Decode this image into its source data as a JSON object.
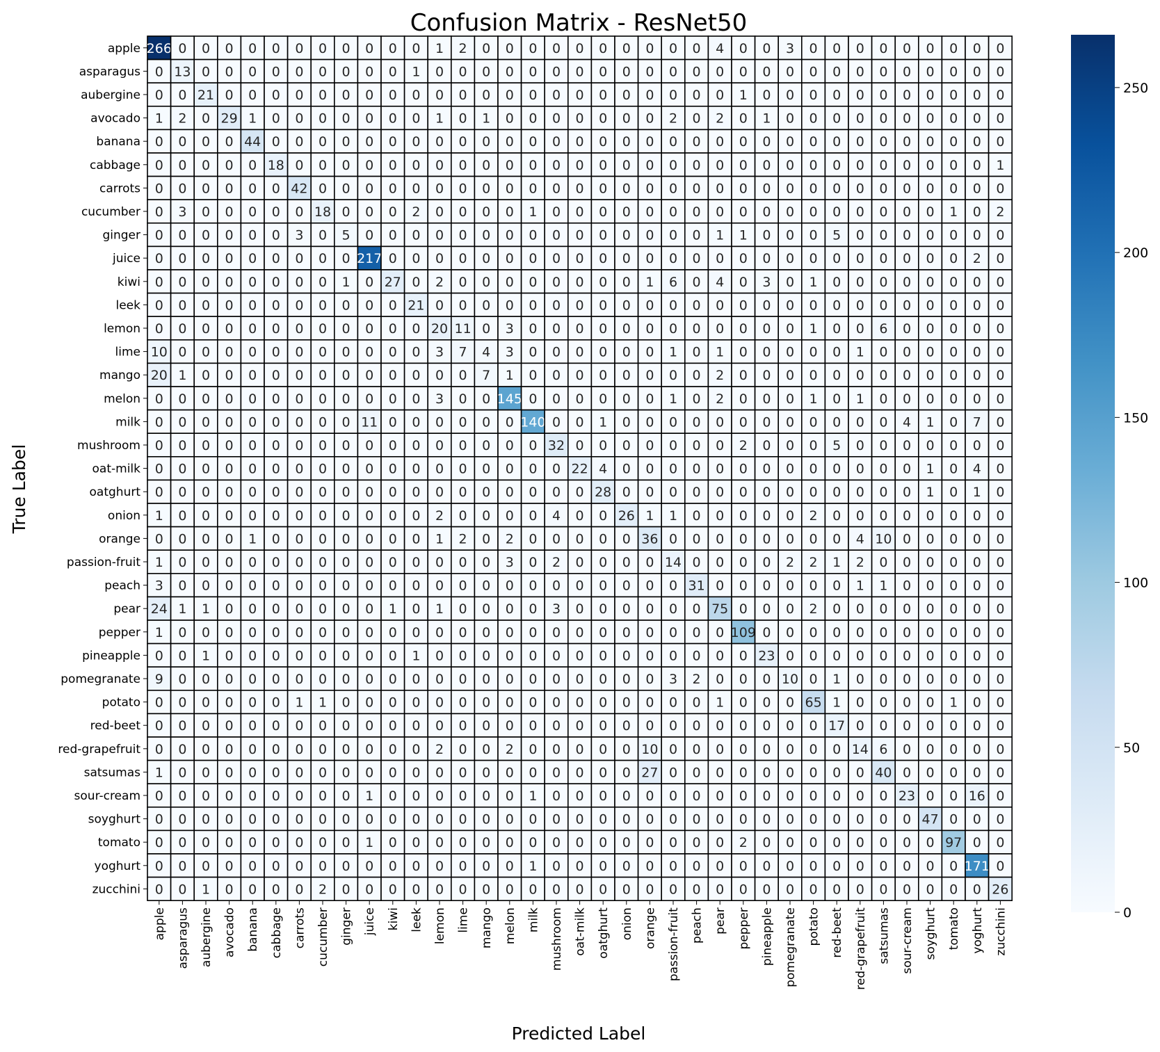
{
  "chart_data": {
    "type": "heatmap",
    "title": "Confusion Matrix - ResNet50",
    "xlabel": "Predicted Label",
    "ylabel": "True Label",
    "colormap": "Blues",
    "value_range": [
      0,
      266
    ],
    "colorbar_ticks": [
      0,
      50,
      100,
      150,
      200,
      250
    ],
    "labels": [
      "apple",
      "asparagus",
      "aubergine",
      "avocado",
      "banana",
      "cabbage",
      "carrots",
      "cucumber",
      "ginger",
      "juice",
      "kiwi",
      "leek",
      "lemon",
      "lime",
      "mango",
      "melon",
      "milk",
      "mushroom",
      "oat-milk",
      "oatghurt",
      "onion",
      "orange",
      "passion-fruit",
      "peach",
      "pear",
      "pepper",
      "pineapple",
      "pomegranate",
      "potato",
      "red-beet",
      "red-grapefruit",
      "satsumas",
      "sour-cream",
      "soyghurt",
      "tomato",
      "yoghurt",
      "zucchini"
    ],
    "matrix": [
      [
        266,
        0,
        0,
        0,
        0,
        0,
        0,
        0,
        0,
        0,
        0,
        0,
        1,
        2,
        0,
        0,
        0,
        0,
        0,
        0,
        0,
        0,
        0,
        0,
        4,
        0,
        0,
        3,
        0,
        0,
        0,
        0,
        0,
        0,
        0,
        0,
        0
      ],
      [
        0,
        13,
        0,
        0,
        0,
        0,
        0,
        0,
        0,
        0,
        0,
        1,
        0,
        0,
        0,
        0,
        0,
        0,
        0,
        0,
        0,
        0,
        0,
        0,
        0,
        0,
        0,
        0,
        0,
        0,
        0,
        0,
        0,
        0,
        0,
        0,
        0
      ],
      [
        0,
        0,
        21,
        0,
        0,
        0,
        0,
        0,
        0,
        0,
        0,
        0,
        0,
        0,
        0,
        0,
        0,
        0,
        0,
        0,
        0,
        0,
        0,
        0,
        0,
        1,
        0,
        0,
        0,
        0,
        0,
        0,
        0,
        0,
        0,
        0,
        0
      ],
      [
        1,
        2,
        0,
        29,
        1,
        0,
        0,
        0,
        0,
        0,
        0,
        0,
        1,
        0,
        1,
        0,
        0,
        0,
        0,
        0,
        0,
        0,
        2,
        0,
        2,
        0,
        1,
        0,
        0,
        0,
        0,
        0,
        0,
        0,
        0,
        0,
        0
      ],
      [
        0,
        0,
        0,
        0,
        44,
        0,
        0,
        0,
        0,
        0,
        0,
        0,
        0,
        0,
        0,
        0,
        0,
        0,
        0,
        0,
        0,
        0,
        0,
        0,
        0,
        0,
        0,
        0,
        0,
        0,
        0,
        0,
        0,
        0,
        0,
        0,
        0
      ],
      [
        0,
        0,
        0,
        0,
        0,
        18,
        0,
        0,
        0,
        0,
        0,
        0,
        0,
        0,
        0,
        0,
        0,
        0,
        0,
        0,
        0,
        0,
        0,
        0,
        0,
        0,
        0,
        0,
        0,
        0,
        0,
        0,
        0,
        0,
        0,
        0,
        1
      ],
      [
        0,
        0,
        0,
        0,
        0,
        0,
        42,
        0,
        0,
        0,
        0,
        0,
        0,
        0,
        0,
        0,
        0,
        0,
        0,
        0,
        0,
        0,
        0,
        0,
        0,
        0,
        0,
        0,
        0,
        0,
        0,
        0,
        0,
        0,
        0,
        0,
        0
      ],
      [
        0,
        3,
        0,
        0,
        0,
        0,
        0,
        18,
        0,
        0,
        0,
        2,
        0,
        0,
        0,
        0,
        1,
        0,
        0,
        0,
        0,
        0,
        0,
        0,
        0,
        0,
        0,
        0,
        0,
        0,
        0,
        0,
        0,
        0,
        1,
        0,
        2
      ],
      [
        0,
        0,
        0,
        0,
        0,
        0,
        3,
        0,
        5,
        0,
        0,
        0,
        0,
        0,
        0,
        0,
        0,
        0,
        0,
        0,
        0,
        0,
        0,
        0,
        1,
        1,
        0,
        0,
        0,
        5,
        0,
        0,
        0,
        0,
        0,
        0,
        0
      ],
      [
        0,
        0,
        0,
        0,
        0,
        0,
        0,
        0,
        0,
        217,
        0,
        0,
        0,
        0,
        0,
        0,
        0,
        0,
        0,
        0,
        0,
        0,
        0,
        0,
        0,
        0,
        0,
        0,
        0,
        0,
        0,
        0,
        0,
        0,
        0,
        2,
        0
      ],
      [
        0,
        0,
        0,
        0,
        0,
        0,
        0,
        0,
        1,
        0,
        27,
        0,
        2,
        0,
        0,
        0,
        0,
        0,
        0,
        0,
        0,
        1,
        6,
        0,
        4,
        0,
        3,
        0,
        1,
        0,
        0,
        0,
        0,
        0,
        0,
        0,
        0
      ],
      [
        0,
        0,
        0,
        0,
        0,
        0,
        0,
        0,
        0,
        0,
        0,
        21,
        0,
        0,
        0,
        0,
        0,
        0,
        0,
        0,
        0,
        0,
        0,
        0,
        0,
        0,
        0,
        0,
        0,
        0,
        0,
        0,
        0,
        0,
        0,
        0,
        0
      ],
      [
        0,
        0,
        0,
        0,
        0,
        0,
        0,
        0,
        0,
        0,
        0,
        0,
        20,
        11,
        0,
        3,
        0,
        0,
        0,
        0,
        0,
        0,
        0,
        0,
        0,
        0,
        0,
        0,
        1,
        0,
        0,
        6,
        0,
        0,
        0,
        0,
        0
      ],
      [
        10,
        0,
        0,
        0,
        0,
        0,
        0,
        0,
        0,
        0,
        0,
        0,
        3,
        7,
        4,
        3,
        0,
        0,
        0,
        0,
        0,
        0,
        1,
        0,
        1,
        0,
        0,
        0,
        0,
        0,
        1,
        0,
        0,
        0,
        0,
        0,
        0
      ],
      [
        20,
        1,
        0,
        0,
        0,
        0,
        0,
        0,
        0,
        0,
        0,
        0,
        0,
        0,
        7,
        1,
        0,
        0,
        0,
        0,
        0,
        0,
        0,
        0,
        2,
        0,
        0,
        0,
        0,
        0,
        0,
        0,
        0,
        0,
        0,
        0,
        0
      ],
      [
        0,
        0,
        0,
        0,
        0,
        0,
        0,
        0,
        0,
        0,
        0,
        0,
        3,
        0,
        0,
        145,
        0,
        0,
        0,
        0,
        0,
        0,
        1,
        0,
        2,
        0,
        0,
        0,
        1,
        0,
        1,
        0,
        0,
        0,
        0,
        0,
        0
      ],
      [
        0,
        0,
        0,
        0,
        0,
        0,
        0,
        0,
        0,
        11,
        0,
        0,
        0,
        0,
        0,
        0,
        140,
        0,
        0,
        1,
        0,
        0,
        0,
        0,
        0,
        0,
        0,
        0,
        0,
        0,
        0,
        0,
        4,
        1,
        0,
        7,
        0
      ],
      [
        0,
        0,
        0,
        0,
        0,
        0,
        0,
        0,
        0,
        0,
        0,
        0,
        0,
        0,
        0,
        0,
        0,
        32,
        0,
        0,
        0,
        0,
        0,
        0,
        0,
        2,
        0,
        0,
        0,
        5,
        0,
        0,
        0,
        0,
        0,
        0,
        0
      ],
      [
        0,
        0,
        0,
        0,
        0,
        0,
        0,
        0,
        0,
        0,
        0,
        0,
        0,
        0,
        0,
        0,
        0,
        0,
        22,
        4,
        0,
        0,
        0,
        0,
        0,
        0,
        0,
        0,
        0,
        0,
        0,
        0,
        0,
        1,
        0,
        4,
        0
      ],
      [
        0,
        0,
        0,
        0,
        0,
        0,
        0,
        0,
        0,
        0,
        0,
        0,
        0,
        0,
        0,
        0,
        0,
        0,
        0,
        28,
        0,
        0,
        0,
        0,
        0,
        0,
        0,
        0,
        0,
        0,
        0,
        0,
        0,
        1,
        0,
        1,
        0
      ],
      [
        1,
        0,
        0,
        0,
        0,
        0,
        0,
        0,
        0,
        0,
        0,
        0,
        2,
        0,
        0,
        0,
        0,
        4,
        0,
        0,
        26,
        1,
        1,
        0,
        0,
        0,
        0,
        0,
        2,
        0,
        0,
        0,
        0,
        0,
        0,
        0,
        0
      ],
      [
        0,
        0,
        0,
        0,
        1,
        0,
        0,
        0,
        0,
        0,
        0,
        0,
        1,
        2,
        0,
        2,
        0,
        0,
        0,
        0,
        0,
        36,
        0,
        0,
        0,
        0,
        0,
        0,
        0,
        0,
        4,
        10,
        0,
        0,
        0,
        0,
        0
      ],
      [
        1,
        0,
        0,
        0,
        0,
        0,
        0,
        0,
        0,
        0,
        0,
        0,
        0,
        0,
        0,
        3,
        0,
        2,
        0,
        0,
        0,
        0,
        14,
        0,
        0,
        0,
        0,
        2,
        2,
        1,
        2,
        0,
        0,
        0,
        0,
        0,
        0
      ],
      [
        3,
        0,
        0,
        0,
        0,
        0,
        0,
        0,
        0,
        0,
        0,
        0,
        0,
        0,
        0,
        0,
        0,
        0,
        0,
        0,
        0,
        0,
        0,
        31,
        0,
        0,
        0,
        0,
        0,
        0,
        1,
        1,
        0,
        0,
        0,
        0,
        0
      ],
      [
        24,
        1,
        1,
        0,
        0,
        0,
        0,
        0,
        0,
        0,
        1,
        0,
        1,
        0,
        0,
        0,
        0,
        3,
        0,
        0,
        0,
        0,
        0,
        0,
        75,
        0,
        0,
        0,
        2,
        0,
        0,
        0,
        0,
        0,
        0,
        0,
        0
      ],
      [
        1,
        0,
        0,
        0,
        0,
        0,
        0,
        0,
        0,
        0,
        0,
        0,
        0,
        0,
        0,
        0,
        0,
        0,
        0,
        0,
        0,
        0,
        0,
        0,
        0,
        109,
        0,
        0,
        0,
        0,
        0,
        0,
        0,
        0,
        0,
        0,
        0
      ],
      [
        0,
        0,
        1,
        0,
        0,
        0,
        0,
        0,
        0,
        0,
        0,
        1,
        0,
        0,
        0,
        0,
        0,
        0,
        0,
        0,
        0,
        0,
        0,
        0,
        0,
        0,
        23,
        0,
        0,
        0,
        0,
        0,
        0,
        0,
        0,
        0,
        0
      ],
      [
        9,
        0,
        0,
        0,
        0,
        0,
        0,
        0,
        0,
        0,
        0,
        0,
        0,
        0,
        0,
        0,
        0,
        0,
        0,
        0,
        0,
        0,
        3,
        2,
        0,
        0,
        0,
        10,
        0,
        1,
        0,
        0,
        0,
        0,
        0,
        0,
        0
      ],
      [
        0,
        0,
        0,
        0,
        0,
        0,
        1,
        1,
        0,
        0,
        0,
        0,
        0,
        0,
        0,
        0,
        0,
        0,
        0,
        0,
        0,
        0,
        0,
        0,
        1,
        0,
        0,
        0,
        65,
        1,
        0,
        0,
        0,
        0,
        1,
        0,
        0
      ],
      [
        0,
        0,
        0,
        0,
        0,
        0,
        0,
        0,
        0,
        0,
        0,
        0,
        0,
        0,
        0,
        0,
        0,
        0,
        0,
        0,
        0,
        0,
        0,
        0,
        0,
        0,
        0,
        0,
        0,
        17,
        0,
        0,
        0,
        0,
        0,
        0,
        0
      ],
      [
        0,
        0,
        0,
        0,
        0,
        0,
        0,
        0,
        0,
        0,
        0,
        0,
        2,
        0,
        0,
        2,
        0,
        0,
        0,
        0,
        0,
        10,
        0,
        0,
        0,
        0,
        0,
        0,
        0,
        0,
        14,
        6,
        0,
        0,
        0,
        0,
        0
      ],
      [
        1,
        0,
        0,
        0,
        0,
        0,
        0,
        0,
        0,
        0,
        0,
        0,
        0,
        0,
        0,
        0,
        0,
        0,
        0,
        0,
        0,
        27,
        0,
        0,
        0,
        0,
        0,
        0,
        0,
        0,
        0,
        40,
        0,
        0,
        0,
        0,
        0
      ],
      [
        0,
        0,
        0,
        0,
        0,
        0,
        0,
        0,
        0,
        1,
        0,
        0,
        0,
        0,
        0,
        0,
        1,
        0,
        0,
        0,
        0,
        0,
        0,
        0,
        0,
        0,
        0,
        0,
        0,
        0,
        0,
        0,
        23,
        0,
        0,
        16,
        0
      ],
      [
        0,
        0,
        0,
        0,
        0,
        0,
        0,
        0,
        0,
        0,
        0,
        0,
        0,
        0,
        0,
        0,
        0,
        0,
        0,
        0,
        0,
        0,
        0,
        0,
        0,
        0,
        0,
        0,
        0,
        0,
        0,
        0,
        0,
        47,
        0,
        0,
        0
      ],
      [
        0,
        0,
        0,
        0,
        0,
        0,
        0,
        0,
        0,
        1,
        0,
        0,
        0,
        0,
        0,
        0,
        0,
        0,
        0,
        0,
        0,
        0,
        0,
        0,
        0,
        2,
        0,
        0,
        0,
        0,
        0,
        0,
        0,
        0,
        97,
        0,
        0
      ],
      [
        0,
        0,
        0,
        0,
        0,
        0,
        0,
        0,
        0,
        0,
        0,
        0,
        0,
        0,
        0,
        0,
        1,
        0,
        0,
        0,
        0,
        0,
        0,
        0,
        0,
        0,
        0,
        0,
        0,
        0,
        0,
        0,
        0,
        0,
        0,
        171,
        0
      ],
      [
        0,
        0,
        1,
        0,
        0,
        0,
        0,
        2,
        0,
        0,
        0,
        0,
        0,
        0,
        0,
        0,
        0,
        0,
        0,
        0,
        0,
        0,
        0,
        0,
        0,
        0,
        0,
        0,
        0,
        0,
        0,
        0,
        0,
        0,
        0,
        0,
        26
      ]
    ]
  }
}
